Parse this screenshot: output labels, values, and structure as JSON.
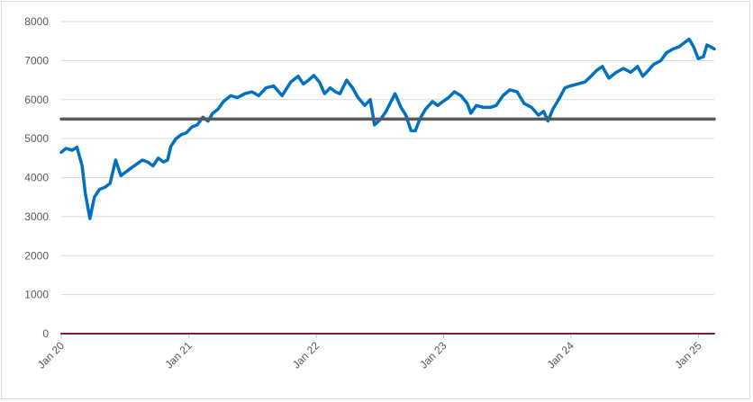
{
  "chart_data": {
    "type": "line",
    "title": "",
    "xlabel": "",
    "ylabel": "",
    "ylim": [
      0,
      8000
    ],
    "yticks": [
      "0",
      "1000",
      "2000",
      "3000",
      "4000",
      "5000",
      "6000",
      "7000",
      "8000"
    ],
    "xticks": [
      {
        "label": "Jan 20",
        "date": "2020-01"
      },
      {
        "label": "Jan 21",
        "date": "2021-01"
      },
      {
        "label": "Jan 22",
        "date": "2022-01"
      },
      {
        "label": "Jan 23",
        "date": "2023-01"
      },
      {
        "label": "Jan 24",
        "date": "2024-01"
      },
      {
        "label": "Jan 25",
        "date": "2025-01"
      }
    ],
    "grid": true,
    "legend": "none",
    "series": [
      {
        "color": "#0070c0",
        "points": [
          [
            "2020-01-01",
            4650
          ],
          [
            "2020-01-15",
            4750
          ],
          [
            "2020-02-01",
            4700
          ],
          [
            "2020-02-15",
            4780
          ],
          [
            "2020-03-01",
            4300
          ],
          [
            "2020-03-10",
            3600
          ],
          [
            "2020-03-23",
            2950
          ],
          [
            "2020-04-05",
            3500
          ],
          [
            "2020-04-20",
            3700
          ],
          [
            "2020-05-05",
            3750
          ],
          [
            "2020-05-20",
            3850
          ],
          [
            "2020-06-05",
            4450
          ],
          [
            "2020-06-20",
            4050
          ],
          [
            "2020-07-05",
            4150
          ],
          [
            "2020-07-20",
            4250
          ],
          [
            "2020-08-05",
            4350
          ],
          [
            "2020-08-20",
            4450
          ],
          [
            "2020-09-05",
            4400
          ],
          [
            "2020-09-20",
            4300
          ],
          [
            "2020-10-05",
            4500
          ],
          [
            "2020-10-20",
            4400
          ],
          [
            "2020-11-01",
            4450
          ],
          [
            "2020-11-10",
            4800
          ],
          [
            "2020-11-25",
            5000
          ],
          [
            "2020-12-10",
            5100
          ],
          [
            "2020-12-25",
            5150
          ],
          [
            "2021-01-10",
            5300
          ],
          [
            "2021-01-25",
            5350
          ],
          [
            "2021-02-10",
            5550
          ],
          [
            "2021-02-25",
            5450
          ],
          [
            "2021-03-10",
            5650
          ],
          [
            "2021-03-25",
            5750
          ],
          [
            "2021-04-10",
            5950
          ],
          [
            "2021-05-01",
            6100
          ],
          [
            "2021-05-20",
            6050
          ],
          [
            "2021-06-10",
            6150
          ],
          [
            "2021-07-01",
            6200
          ],
          [
            "2021-07-20",
            6100
          ],
          [
            "2021-08-10",
            6300
          ],
          [
            "2021-09-01",
            6350
          ],
          [
            "2021-09-25",
            6100
          ],
          [
            "2021-10-20",
            6450
          ],
          [
            "2021-11-10",
            6600
          ],
          [
            "2021-11-25",
            6400
          ],
          [
            "2021-12-10",
            6500
          ],
          [
            "2021-12-25",
            6620
          ],
          [
            "2022-01-10",
            6450
          ],
          [
            "2022-01-25",
            6150
          ],
          [
            "2022-02-10",
            6300
          ],
          [
            "2022-02-25",
            6200
          ],
          [
            "2022-03-10",
            6150
          ],
          [
            "2022-03-29",
            6500
          ],
          [
            "2022-04-15",
            6300
          ],
          [
            "2022-05-01",
            6050
          ],
          [
            "2022-05-20",
            5850
          ],
          [
            "2022-06-05",
            6000
          ],
          [
            "2022-06-17",
            5350
          ],
          [
            "2022-07-05",
            5500
          ],
          [
            "2022-07-20",
            5700
          ],
          [
            "2022-08-15",
            6150
          ],
          [
            "2022-09-01",
            5800
          ],
          [
            "2022-09-15",
            5600
          ],
          [
            "2022-09-30",
            5200
          ],
          [
            "2022-10-12",
            5200
          ],
          [
            "2022-10-25",
            5500
          ],
          [
            "2022-11-10",
            5750
          ],
          [
            "2022-11-30",
            5950
          ],
          [
            "2022-12-15",
            5850
          ],
          [
            "2022-12-30",
            5950
          ],
          [
            "2023-01-15",
            6050
          ],
          [
            "2023-02-01",
            6200
          ],
          [
            "2023-02-20",
            6100
          ],
          [
            "2023-03-10",
            5900
          ],
          [
            "2023-03-20",
            5650
          ],
          [
            "2023-04-05",
            5850
          ],
          [
            "2023-04-25",
            5800
          ],
          [
            "2023-05-15",
            5800
          ],
          [
            "2023-06-01",
            5850
          ],
          [
            "2023-06-20",
            6100
          ],
          [
            "2023-07-10",
            6250
          ],
          [
            "2023-07-31",
            6200
          ],
          [
            "2023-08-20",
            5900
          ],
          [
            "2023-09-10",
            5800
          ],
          [
            "2023-09-30",
            5600
          ],
          [
            "2023-10-15",
            5700
          ],
          [
            "2023-10-27",
            5450
          ],
          [
            "2023-11-10",
            5750
          ],
          [
            "2023-11-30",
            6050
          ],
          [
            "2023-12-15",
            6300
          ],
          [
            "2023-12-30",
            6350
          ],
          [
            "2024-01-20",
            6400
          ],
          [
            "2024-02-10",
            6450
          ],
          [
            "2024-02-28",
            6600
          ],
          [
            "2024-03-15",
            6750
          ],
          [
            "2024-03-31",
            6850
          ],
          [
            "2024-04-19",
            6550
          ],
          [
            "2024-05-10",
            6700
          ],
          [
            "2024-05-31",
            6800
          ],
          [
            "2024-06-20",
            6700
          ],
          [
            "2024-07-10",
            6850
          ],
          [
            "2024-07-25",
            6600
          ],
          [
            "2024-08-05",
            6700
          ],
          [
            "2024-08-25",
            6900
          ],
          [
            "2024-09-15",
            7000
          ],
          [
            "2024-10-01",
            7200
          ],
          [
            "2024-10-20",
            7300
          ],
          [
            "2024-11-05",
            7350
          ],
          [
            "2024-11-20",
            7450
          ],
          [
            "2024-12-05",
            7550
          ],
          [
            "2024-12-18",
            7350
          ],
          [
            "2024-12-31",
            7050
          ],
          [
            "2025-01-15",
            7100
          ],
          [
            "2025-01-25",
            7400
          ],
          [
            "2025-02-05",
            7350
          ],
          [
            "2025-02-15",
            7300
          ]
        ]
      },
      {
        "color": "#595959",
        "points": [
          [
            "2020-01-01",
            5500
          ],
          [
            "2025-02-15",
            5500
          ]
        ]
      },
      {
        "color": "#7b1f35",
        "points": [
          [
            "2020-01-01",
            0
          ],
          [
            "2025-02-15",
            0
          ]
        ]
      }
    ]
  }
}
